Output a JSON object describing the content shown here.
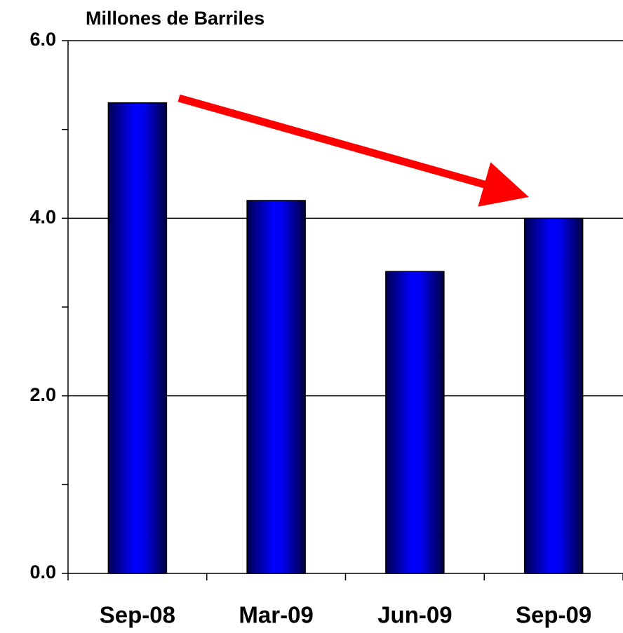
{
  "chart_data": {
    "type": "bar",
    "title": "Millones de Barriles",
    "categories": [
      "Sep-08",
      "Mar-09",
      "Jun-09",
      "Sep-09"
    ],
    "values": [
      5.3,
      4.2,
      3.4,
      4.0
    ],
    "color": "#0000ff",
    "ylim": [
      0,
      6
    ],
    "yticks": [
      {
        "value": 0,
        "label": "0.0"
      },
      {
        "value": 2,
        "label": "2.0"
      },
      {
        "value": 4,
        "label": "4.0"
      },
      {
        "value": 6,
        "label": "6.0"
      }
    ],
    "yminor_ticks": [
      1,
      3,
      5
    ],
    "grid": true
  }
}
